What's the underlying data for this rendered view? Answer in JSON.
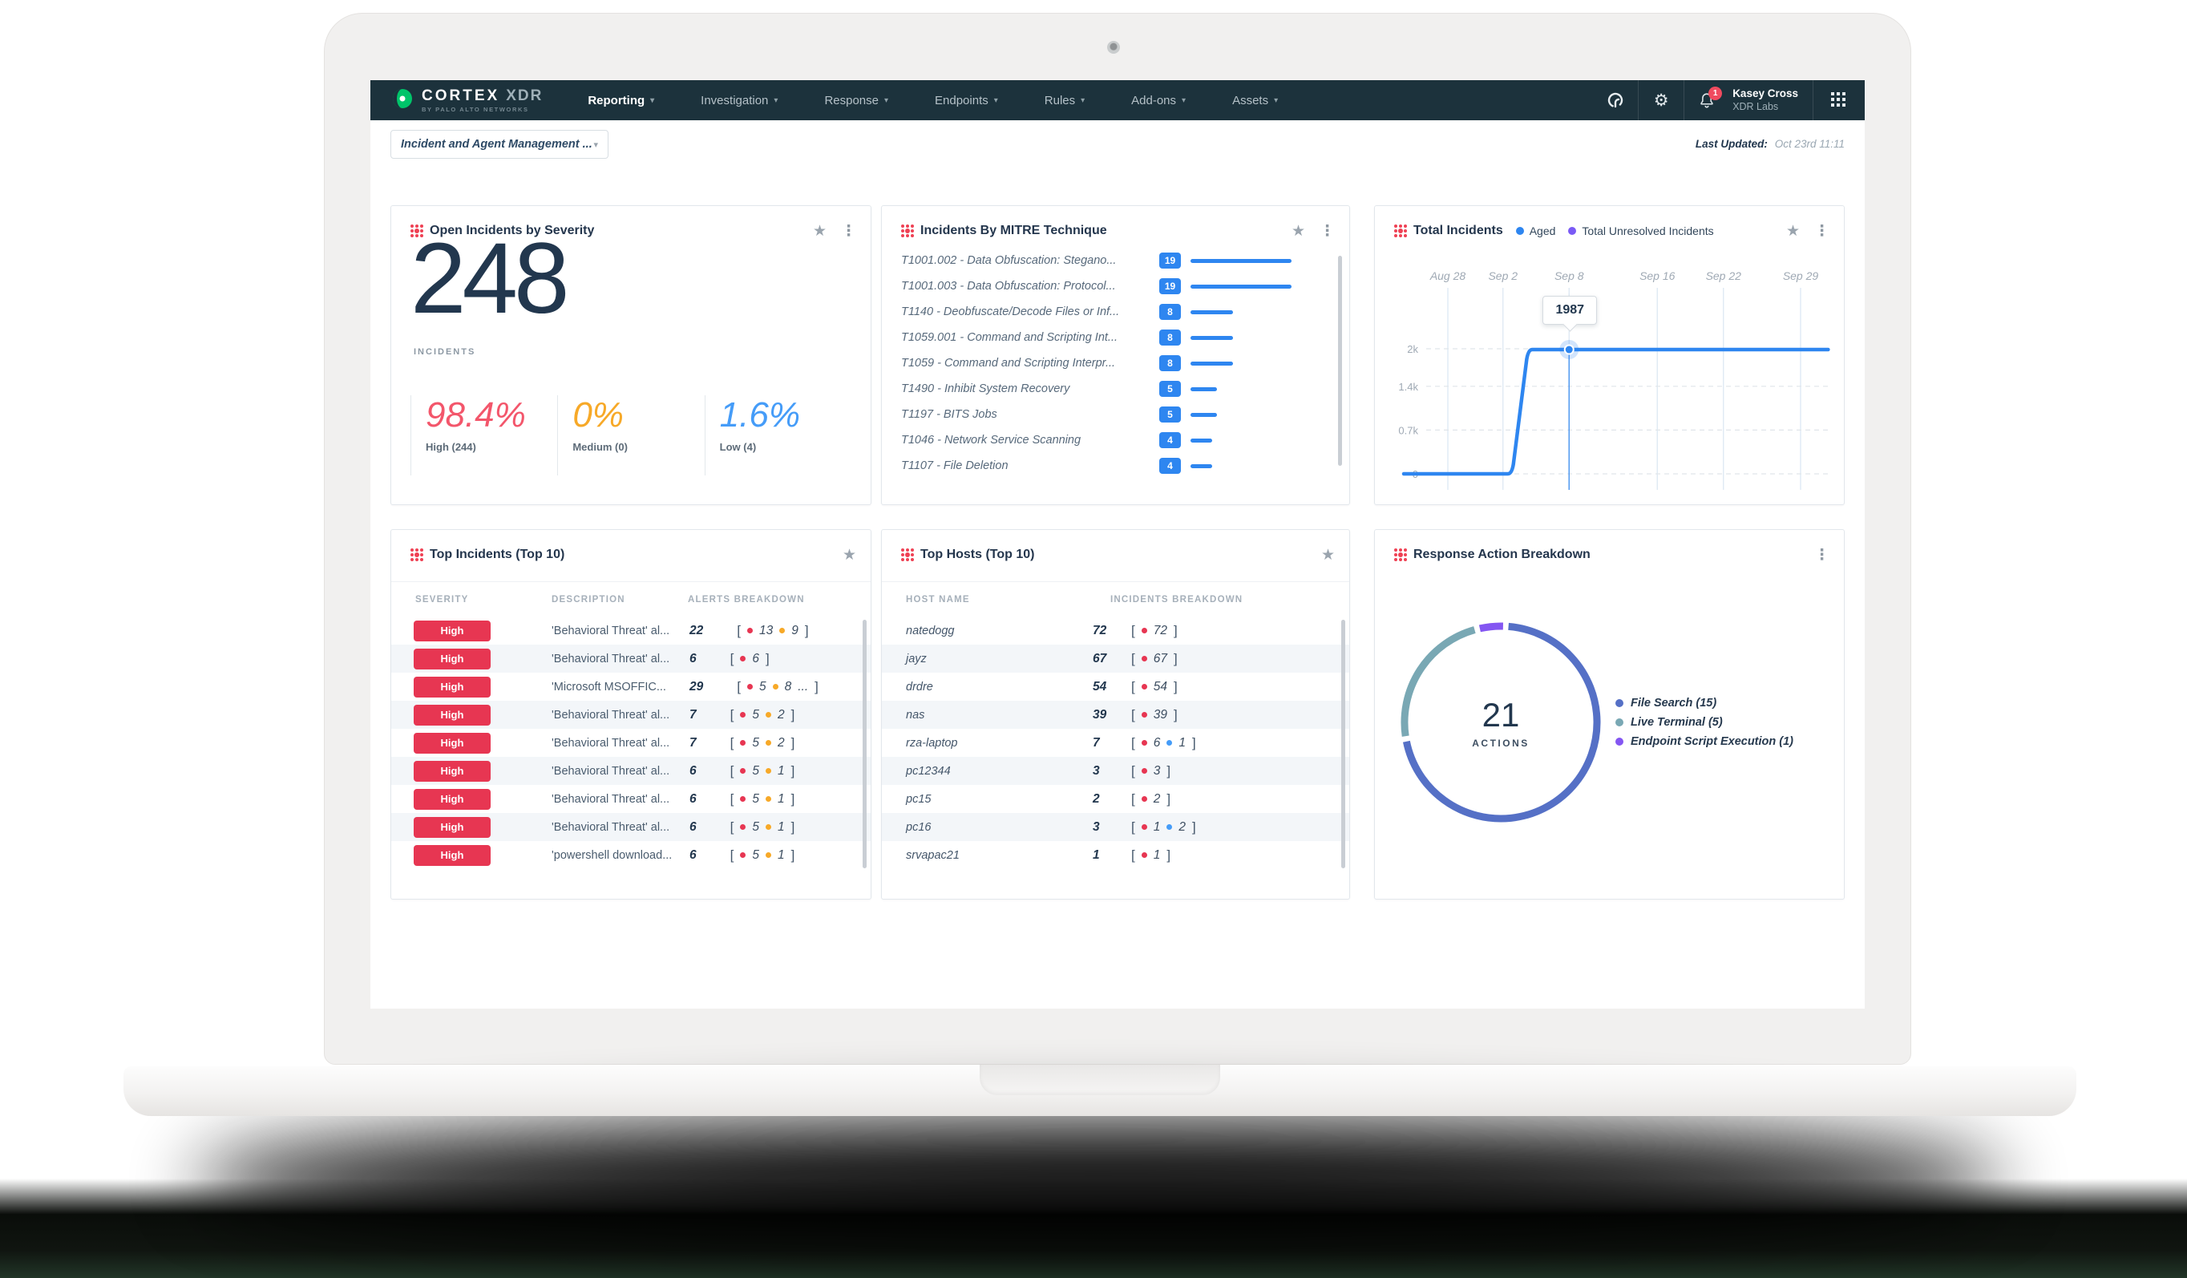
{
  "navbar": {
    "brand": {
      "primary": "CORTEX",
      "secondary": "XDR",
      "tagline": "BY PALO ALTO NETWORKS"
    },
    "menu": [
      {
        "label": "Reporting",
        "active": true
      },
      {
        "label": "Investigation",
        "active": false
      },
      {
        "label": "Response",
        "active": false
      },
      {
        "label": "Endpoints",
        "active": false
      },
      {
        "label": "Rules",
        "active": false
      },
      {
        "label": "Add-ons",
        "active": false
      },
      {
        "label": "Assets",
        "active": false
      }
    ],
    "notification_count": "1",
    "user": {
      "name": "Kasey Cross",
      "org": "XDR Labs"
    }
  },
  "subheader": {
    "selector_value": "Incident and Agent Management ...",
    "last_updated_label": "Last Updated:",
    "last_updated_value": "Oct 23rd 11:11"
  },
  "cards": {
    "open_incidents": {
      "title": "Open Incidents by Severity",
      "total": "248",
      "total_caption": "INCIDENTS",
      "stats": [
        {
          "pct": "98.4%",
          "label": "High (244)",
          "color": "#f3566b"
        },
        {
          "pct": "0%",
          "label": "Medium (0)",
          "color": "#f7a928"
        },
        {
          "pct": "1.6%",
          "label": "Low (4)",
          "color": "#459cf8"
        }
      ]
    },
    "mitre": {
      "title": "Incidents By MITRE Technique",
      "bar_color": "#2e86f0"
    },
    "total_incidents": {
      "title": "Total Incidents",
      "legend": [
        {
          "label": "Aged",
          "color": "#2e86f0"
        },
        {
          "label": "Total Unresolved Incidents",
          "color": "#7a5af5"
        }
      ]
    },
    "top_incidents": {
      "title": "Top Incidents (Top 10)",
      "columns": [
        "SEVERITY",
        "DESCRIPTION",
        "ALERTS BREAKDOWN"
      ],
      "rows": [
        {
          "severity": "High",
          "description": "'Behavioral Threat' al...",
          "count": "22",
          "breakdown": [
            {
              "color": "#e73652",
              "value": "13"
            },
            {
              "color": "#f7a928",
              "value": "9"
            }
          ],
          "more": false
        },
        {
          "severity": "High",
          "description": "'Behavioral Threat' al...",
          "count": "6",
          "breakdown": [
            {
              "color": "#e73652",
              "value": "6"
            }
          ],
          "more": false
        },
        {
          "severity": "High",
          "description": "'Microsoft MSOFFIC...",
          "count": "29",
          "breakdown": [
            {
              "color": "#e73652",
              "value": "5"
            },
            {
              "color": "#f7a928",
              "value": "8"
            }
          ],
          "more": true
        },
        {
          "severity": "High",
          "description": "'Behavioral Threat' al...",
          "count": "7",
          "breakdown": [
            {
              "color": "#e73652",
              "value": "5"
            },
            {
              "color": "#f7a928",
              "value": "2"
            }
          ],
          "more": false
        },
        {
          "severity": "High",
          "description": "'Behavioral Threat' al...",
          "count": "7",
          "breakdown": [
            {
              "color": "#e73652",
              "value": "5"
            },
            {
              "color": "#f7a928",
              "value": "2"
            }
          ],
          "more": false
        },
        {
          "severity": "High",
          "description": "'Behavioral Threat' al...",
          "count": "6",
          "breakdown": [
            {
              "color": "#e73652",
              "value": "5"
            },
            {
              "color": "#f7a928",
              "value": "1"
            }
          ],
          "more": false
        },
        {
          "severity": "High",
          "description": "'Behavioral Threat' al...",
          "count": "6",
          "breakdown": [
            {
              "color": "#e73652",
              "value": "5"
            },
            {
              "color": "#f7a928",
              "value": "1"
            }
          ],
          "more": false
        },
        {
          "severity": "High",
          "description": "'Behavioral Threat' al...",
          "count": "6",
          "breakdown": [
            {
              "color": "#e73652",
              "value": "5"
            },
            {
              "color": "#f7a928",
              "value": "1"
            }
          ],
          "more": false
        },
        {
          "severity": "High",
          "description": "'powershell download...",
          "count": "6",
          "breakdown": [
            {
              "color": "#e73652",
              "value": "5"
            },
            {
              "color": "#f7a928",
              "value": "1"
            }
          ],
          "more": false
        }
      ]
    },
    "top_hosts": {
      "title": "Top Hosts (Top 10)",
      "columns": [
        "HOST NAME",
        "INCIDENTS BREAKDOWN"
      ],
      "rows": [
        {
          "host": "natedogg",
          "count": "72",
          "breakdown": [
            {
              "color": "#e73652",
              "value": "72"
            }
          ]
        },
        {
          "host": "jayz",
          "count": "67",
          "breakdown": [
            {
              "color": "#e73652",
              "value": "67"
            }
          ]
        },
        {
          "host": "drdre",
          "count": "54",
          "breakdown": [
            {
              "color": "#e73652",
              "value": "54"
            }
          ]
        },
        {
          "host": "nas",
          "count": "39",
          "breakdown": [
            {
              "color": "#e73652",
              "value": "39"
            }
          ]
        },
        {
          "host": "rza-laptop",
          "count": "7",
          "breakdown": [
            {
              "color": "#e73652",
              "value": "6"
            },
            {
              "color": "#459cf8",
              "value": "1"
            }
          ]
        },
        {
          "host": "pc12344",
          "count": "3",
          "breakdown": [
            {
              "color": "#e73652",
              "value": "3"
            }
          ]
        },
        {
          "host": "pc15",
          "count": "2",
          "breakdown": [
            {
              "color": "#e73652",
              "value": "2"
            }
          ]
        },
        {
          "host": "pc16",
          "count": "3",
          "breakdown": [
            {
              "color": "#e73652",
              "value": "1"
            },
            {
              "color": "#459cf8",
              "value": "2"
            }
          ]
        },
        {
          "host": "srvapac21",
          "count": "1",
          "breakdown": [
            {
              "color": "#e73652",
              "value": "1"
            }
          ]
        }
      ]
    },
    "response_actions": {
      "title": "Response Action Breakdown",
      "center_value": "21",
      "center_caption": "ACTIONS"
    }
  },
  "chart_data": [
    {
      "type": "line",
      "title": "Total Incidents",
      "x_tick_labels": [
        "Aug 28",
        "Sep 2",
        "Sep 8",
        "Sep 16",
        "Sep 22",
        "Sep 29"
      ],
      "x_tick_days": [
        0,
        5,
        11,
        19,
        25,
        32
      ],
      "y_ticks": [
        {
          "label": "0",
          "value": 0
        },
        {
          "label": "0.7k",
          "value": 700
        },
        {
          "label": "1.4k",
          "value": 1400
        },
        {
          "label": "2k",
          "value": 2000
        }
      ],
      "ylim": [
        0,
        2000
      ],
      "series": [
        {
          "name": "Aged",
          "color": "#2e86f0",
          "points": [
            {
              "day": -4,
              "value": 0
            },
            {
              "day": 5.8,
              "value": 0
            },
            {
              "day": 7.3,
              "value": 1987
            },
            {
              "day": 34.5,
              "value": 1987
            }
          ]
        },
        {
          "name": "Total Unresolved Incidents",
          "color": "#7a5af5",
          "note": "overlaps Aged series, not separately visible"
        }
      ],
      "tooltip": {
        "label": "1987",
        "day": 11,
        "value": 1987
      },
      "grid": true,
      "legend_position": "top"
    },
    {
      "type": "pie",
      "title": "Response Action Breakdown",
      "labels": [
        "File Search (15)",
        "Live Terminal (5)",
        "Endpoint Script Execution (1)"
      ],
      "values": [
        15,
        5,
        1
      ],
      "colors": [
        "#5570c6",
        "#79a8b4",
        "#8456f2"
      ],
      "center_text": "21 ACTIONS",
      "legend_position": "right"
    },
    {
      "type": "bar",
      "title": "Incidents By MITRE Technique",
      "orientation": "horizontal",
      "categories": [
        "T1001.002 - Data Obfuscation: Stegano...",
        "T1001.003 - Data Obfuscation: Protocol...",
        "T1140 - Deobfuscate/Decode Files or Inf...",
        "T1059.001 - Command and Scripting Int...",
        "T1059 - Command and Scripting Interpr...",
        "T1490 - Inhibit System Recovery",
        "T1197 - BITS Jobs",
        "T1046 - Network Service Scanning",
        "T1107 - File Deletion"
      ],
      "values": [
        19,
        19,
        8,
        8,
        8,
        5,
        5,
        4,
        4
      ],
      "xlim": [
        0,
        19
      ]
    }
  ]
}
